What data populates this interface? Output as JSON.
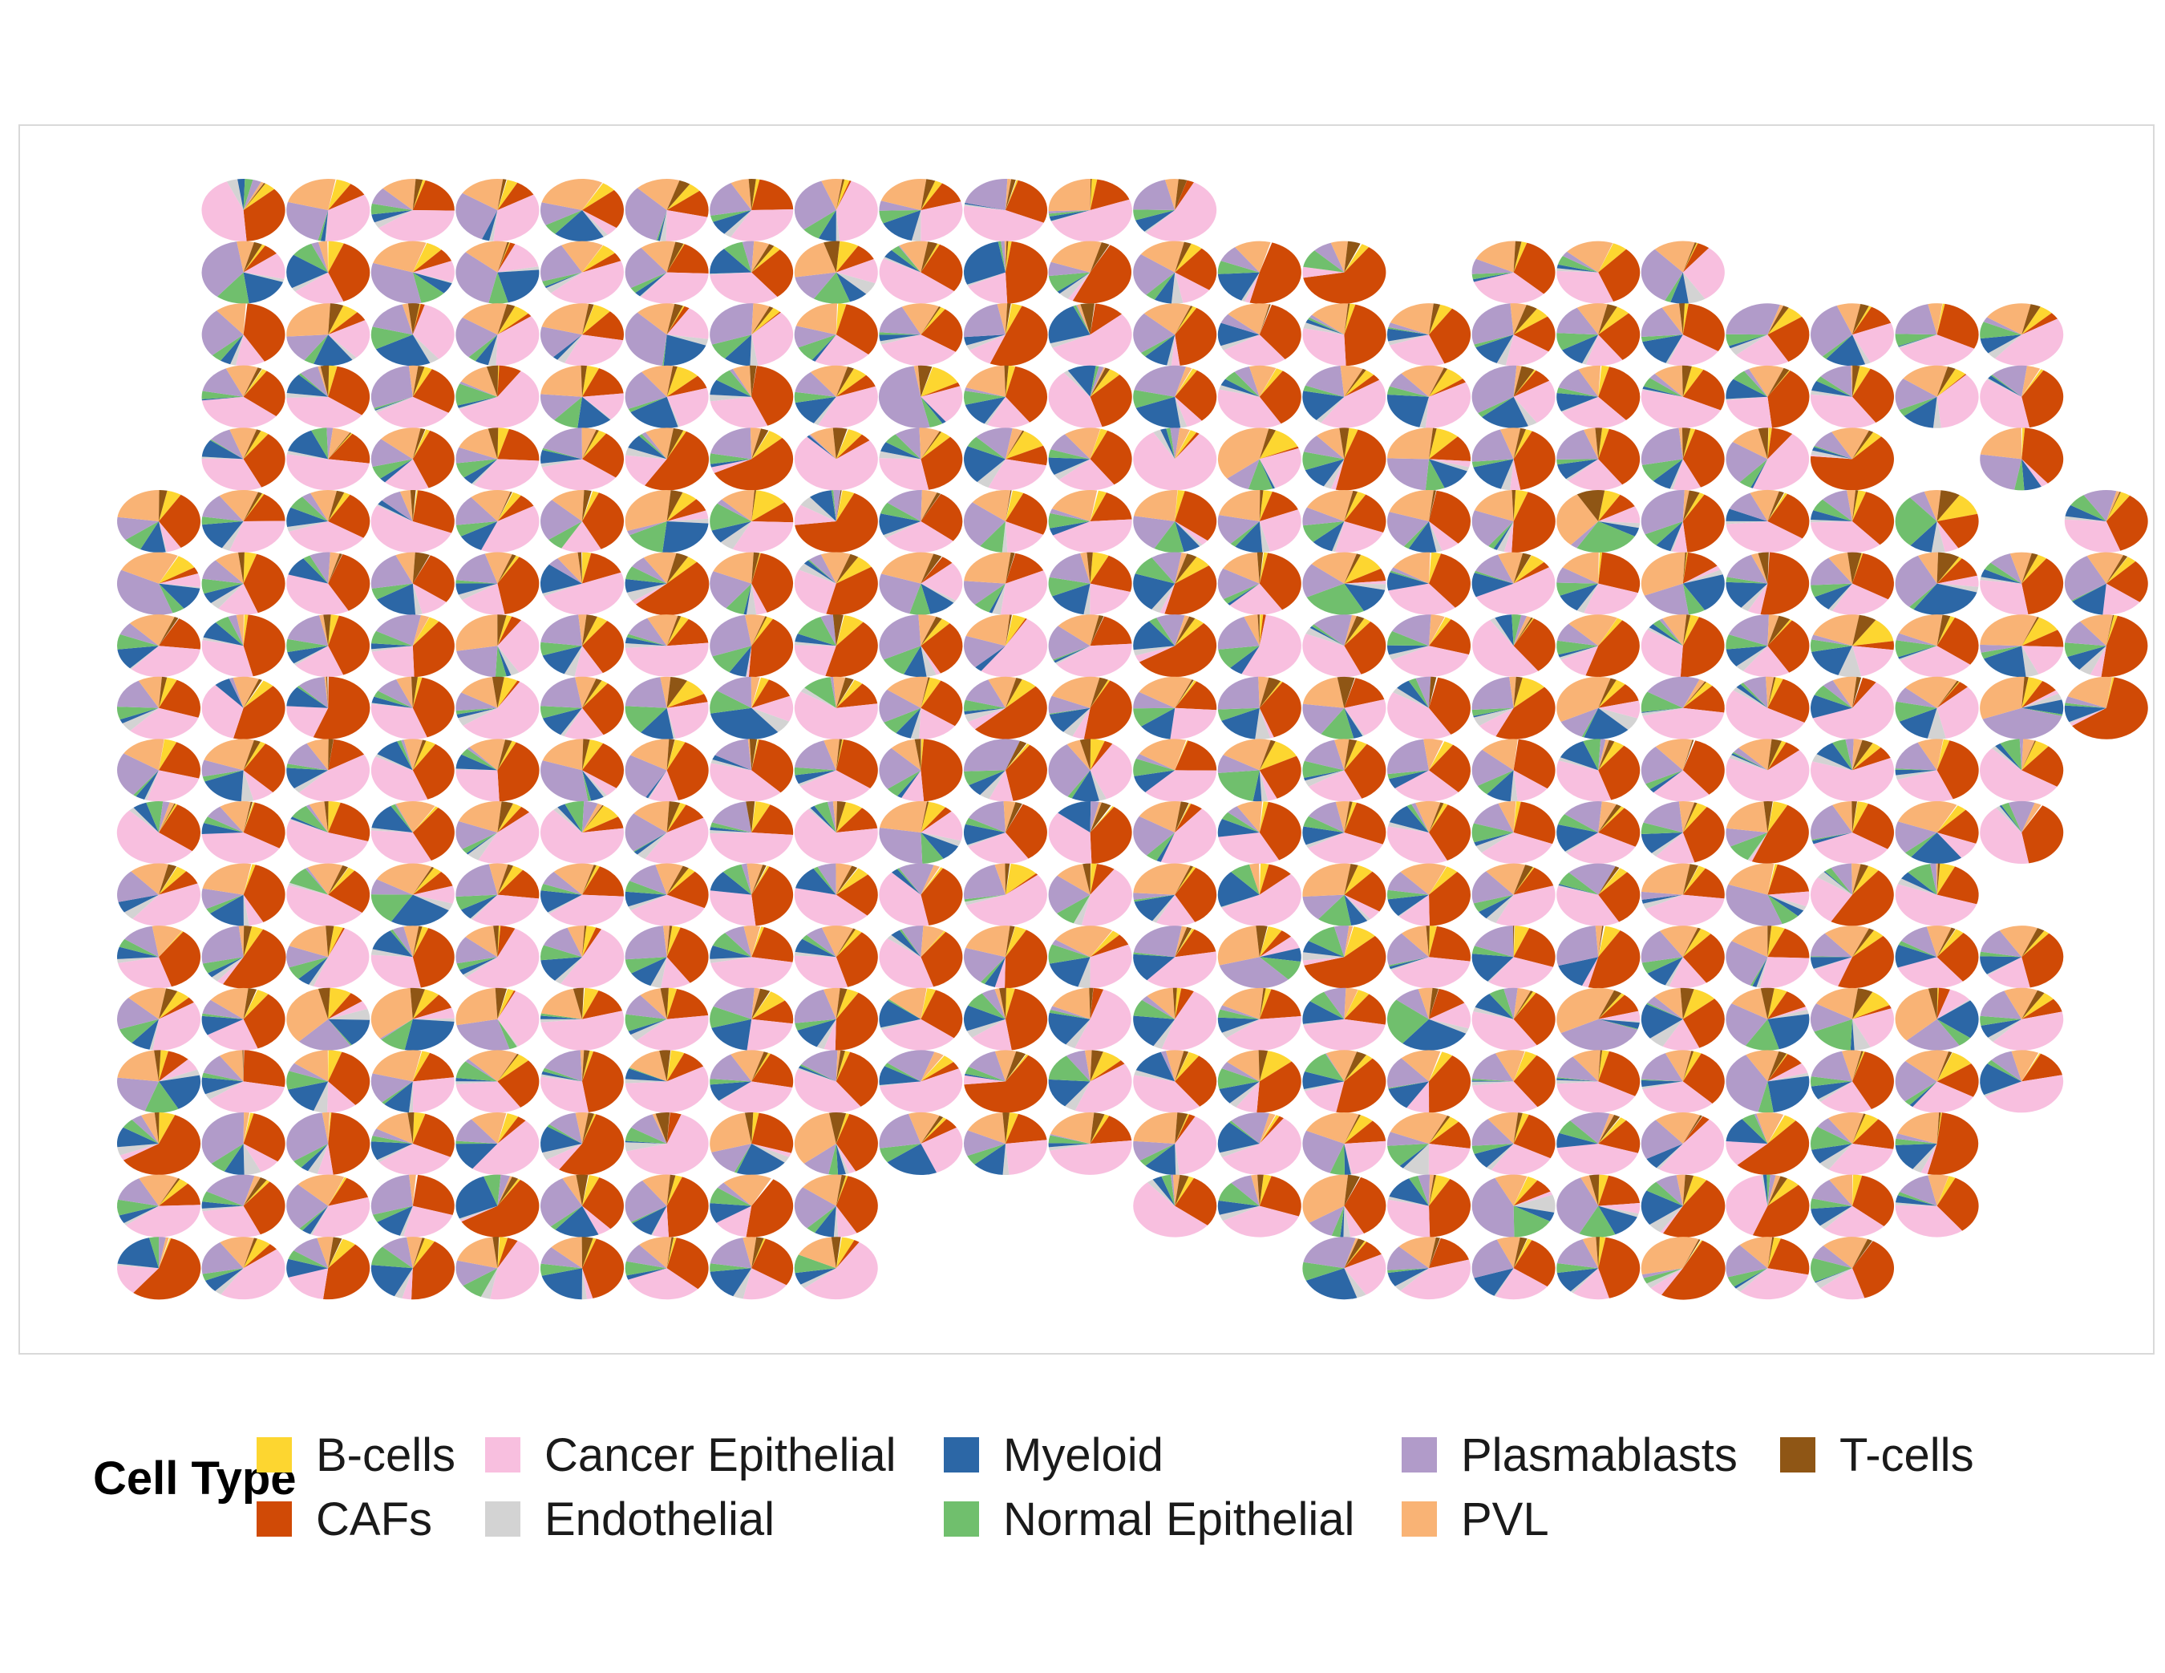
{
  "chart_data": {
    "type": "pie",
    "description_kind": "spatial grid of pie charts (scatterpie)",
    "legend": {
      "title": "Cell Type",
      "position": "bottom",
      "entries": [
        {
          "name": "B-cells",
          "color": "#FDD630"
        },
        {
          "name": "CAFs",
          "color": "#D04A06"
        },
        {
          "name": "Cancer Epithelial",
          "color": "#F8BFDF"
        },
        {
          "name": "Endothelial",
          "color": "#D3D3D3"
        },
        {
          "name": "Myeloid",
          "color": "#2C67A6"
        },
        {
          "name": "Normal Epithelial",
          "color": "#70BF6D"
        },
        {
          "name": "Plasmablasts",
          "color": "#B19BC9"
        },
        {
          "name": "PVL",
          "color": "#F9B375"
        },
        {
          "name": "T-cells",
          "color": "#8F5615"
        }
      ]
    },
    "grid_rows": [
      {
        "row": 0,
        "cols": [
          1,
          2,
          3,
          4,
          5,
          6,
          7,
          8,
          9,
          10,
          11,
          12
        ]
      },
      {
        "row": 1,
        "cols": [
          1,
          2,
          3,
          4,
          5,
          6,
          7,
          8,
          9,
          10,
          11,
          12,
          13,
          14,
          16,
          17,
          18
        ]
      },
      {
        "row": 2,
        "cols": [
          1,
          2,
          3,
          4,
          5,
          6,
          7,
          8,
          9,
          10,
          11,
          12,
          13,
          14,
          15,
          16,
          17,
          18,
          19,
          20,
          21,
          22
        ]
      },
      {
        "row": 3,
        "cols": [
          1,
          2,
          3,
          4,
          5,
          6,
          7,
          8,
          9,
          10,
          11,
          12,
          13,
          14,
          15,
          16,
          17,
          18,
          19,
          20,
          21,
          22
        ]
      },
      {
        "row": 4,
        "cols": [
          1,
          2,
          3,
          4,
          5,
          6,
          7,
          8,
          9,
          10,
          11,
          12,
          13,
          14,
          15,
          16,
          17,
          18,
          19,
          20,
          22
        ]
      },
      {
        "row": 5,
        "cols": [
          0,
          1,
          2,
          3,
          4,
          5,
          6,
          7,
          8,
          9,
          10,
          11,
          12,
          13,
          14,
          15,
          16,
          17,
          18,
          19,
          20,
          21,
          23
        ]
      },
      {
        "row": 6,
        "cols": [
          0,
          1,
          2,
          3,
          4,
          5,
          6,
          7,
          8,
          9,
          10,
          11,
          12,
          13,
          14,
          15,
          16,
          17,
          18,
          19,
          20,
          21,
          22,
          23
        ]
      },
      {
        "row": 7,
        "cols": [
          0,
          1,
          2,
          3,
          4,
          5,
          6,
          7,
          8,
          9,
          10,
          11,
          12,
          13,
          14,
          15,
          16,
          17,
          18,
          19,
          20,
          21,
          22,
          23
        ]
      },
      {
        "row": 8,
        "cols": [
          0,
          1,
          2,
          3,
          4,
          5,
          6,
          7,
          8,
          9,
          10,
          11,
          12,
          13,
          14,
          15,
          16,
          17,
          18,
          19,
          20,
          21,
          22,
          23
        ]
      },
      {
        "row": 9,
        "cols": [
          0,
          1,
          2,
          3,
          4,
          5,
          6,
          7,
          8,
          9,
          10,
          11,
          12,
          13,
          14,
          15,
          16,
          17,
          18,
          19,
          20,
          21,
          22
        ]
      },
      {
        "row": 10,
        "cols": [
          0,
          1,
          2,
          3,
          4,
          5,
          6,
          7,
          8,
          9,
          10,
          11,
          12,
          13,
          14,
          15,
          16,
          17,
          18,
          19,
          20,
          21,
          22
        ]
      },
      {
        "row": 11,
        "cols": [
          0,
          1,
          2,
          3,
          4,
          5,
          6,
          7,
          8,
          9,
          10,
          11,
          12,
          13,
          14,
          15,
          16,
          17,
          18,
          19,
          20,
          21
        ]
      },
      {
        "row": 12,
        "cols": [
          0,
          1,
          2,
          3,
          4,
          5,
          6,
          7,
          8,
          9,
          10,
          11,
          12,
          13,
          14,
          15,
          16,
          17,
          18,
          19,
          20,
          21,
          22
        ]
      },
      {
        "row": 13,
        "cols": [
          0,
          1,
          2,
          3,
          4,
          5,
          6,
          7,
          8,
          9,
          10,
          11,
          12,
          13,
          14,
          15,
          16,
          17,
          18,
          19,
          20,
          21,
          22
        ]
      },
      {
        "row": 14,
        "cols": [
          0,
          1,
          2,
          3,
          4,
          5,
          6,
          7,
          8,
          9,
          10,
          11,
          12,
          13,
          14,
          15,
          16,
          17,
          18,
          19,
          20,
          21,
          22
        ]
      },
      {
        "row": 15,
        "cols": [
          0,
          1,
          2,
          3,
          4,
          5,
          6,
          7,
          8,
          9,
          10,
          11,
          12,
          13,
          14,
          15,
          16,
          17,
          18,
          19,
          20,
          21
        ]
      },
      {
        "row": 16,
        "cols": [
          0,
          1,
          2,
          3,
          4,
          5,
          6,
          7,
          8,
          12,
          13,
          14,
          15,
          16,
          17,
          18,
          19,
          20,
          21
        ]
      },
      {
        "row": 17,
        "cols": [
          0,
          1,
          2,
          3,
          4,
          5,
          6,
          7,
          8,
          14,
          15,
          16,
          17,
          18,
          19,
          20
        ]
      }
    ],
    "proportion_generation": {
      "seed": 7,
      "types_order": [
        "B-cells",
        "CAFs",
        "Cancer Epithelial",
        "Endothelial",
        "Myeloid",
        "Normal Epithelial",
        "Plasmablasts",
        "PVL",
        "T-cells"
      ]
    }
  }
}
